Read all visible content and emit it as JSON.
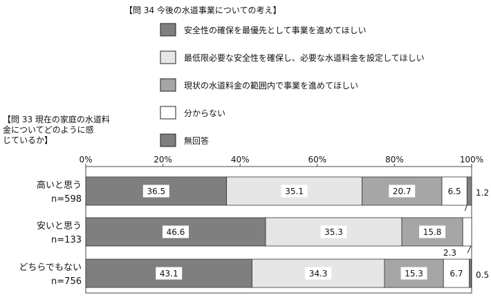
{
  "chart_data": {
    "type": "bar",
    "stacked": true,
    "orientation": "horizontal",
    "title": "【問 34 今後の水道事業についての考え】",
    "row_header": [
      "【問 33 現在の家庭の水道料",
      "金についてどのように感",
      "じているか】"
    ],
    "xlim": [
      0,
      100
    ],
    "x_ticks": [
      "0%",
      "20%",
      "40%",
      "60%",
      "80%",
      "100%"
    ],
    "categories": [
      {
        "label": "高いと思う",
        "n": "n=598"
      },
      {
        "label": "安いと思う",
        "n": "n=133"
      },
      {
        "label": "どちらでもない",
        "n": "n=756"
      }
    ],
    "series": [
      {
        "name": "安全性の確保を最優先として事業を進めてほしい",
        "color": "#7f7f7f",
        "values": [
          36.5,
          46.6,
          43.1
        ]
      },
      {
        "name": "最低限必要な安全性を確保し、必要な水道料金を設定してほしい",
        "color": "#e6e6e6",
        "values": [
          35.1,
          35.3,
          34.3
        ]
      },
      {
        "name": "現状の水道料金の範囲内で事業を進めてほしい",
        "color": "#a6a6a6",
        "values": [
          20.7,
          15.8,
          15.3
        ]
      },
      {
        "name": "分からない",
        "color": "#ffffff",
        "values": [
          6.5,
          2.3,
          6.7
        ]
      },
      {
        "name": "無回答",
        "color": "#7f7f7f",
        "values": [
          1.2,
          0.0,
          0.5
        ]
      }
    ],
    "data_labels": [
      [
        "36.5",
        "35.1",
        "20.7",
        "6.5",
        "1.2"
      ],
      [
        "46.6",
        "35.3",
        "15.8",
        "2.3",
        ""
      ],
      [
        "43.1",
        "34.3",
        "15.3",
        "6.7",
        "0.5"
      ]
    ],
    "legend_placement": "top"
  }
}
